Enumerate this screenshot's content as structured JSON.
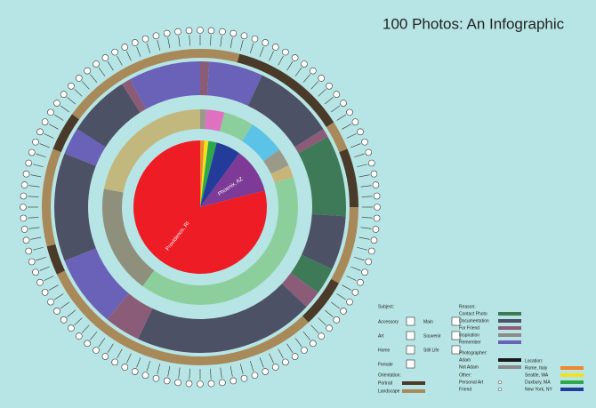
{
  "title": "100 Photos: An Infographic",
  "pie": {
    "labels": [
      "Rome, Italy",
      "Seattle, WA",
      "Duxbury, MA",
      "New York, NY",
      "Phoenix, AZ",
      "Providence, RI"
    ],
    "values": [
      1,
      1,
      2,
      6,
      11,
      79
    ],
    "colors": [
      "#f0872a",
      "#f2e21c",
      "#2fa84a",
      "#233c9a",
      "#7d3a96",
      "#ee1c25"
    ]
  },
  "rings": [
    {
      "values": [
        1,
        3,
        5,
        6,
        3,
        2,
        40,
        18,
        22
      ],
      "colors": [
        "#9a9a8a",
        "#e070c0",
        "#8dcf9c",
        "#5cc3e8",
        "#9a9a8a",
        "#c8b57a",
        "#8dcf9c",
        "#8f907c",
        "#c2b87e"
      ]
    },
    {
      "values": [
        1,
        6,
        9,
        1,
        9,
        6,
        3,
        2,
        20,
        4,
        8,
        12,
        3,
        7,
        1,
        8
      ],
      "colors": [
        "#8b5c78",
        "#6a62b8",
        "#4d5165",
        "#8b5c78",
        "#3e7a57",
        "#4d5165",
        "#3e7a57",
        "#8b5c78",
        "#4d5165",
        "#8b5c78",
        "#6a62b8",
        "#4d5165",
        "#6a62b8",
        "#4d5165",
        "#8b5c78",
        "#6a62b8"
      ]
    },
    {
      "values": [
        4,
        12,
        3,
        6,
        8,
        5,
        30,
        3,
        10,
        4,
        15
      ],
      "colors": [
        "#a88a5a",
        "#4a3a2a",
        "#a88a5a",
        "#4a3a2a",
        "#a88a5a",
        "#4a3a2a",
        "#a88a5a",
        "#4a3a2a",
        "#a88a5a",
        "#4a3a2a",
        "#a88a5a"
      ]
    }
  ],
  "legend": {
    "subject": {
      "title": "Subject:",
      "items": [
        "Accessory",
        "Art",
        "Home",
        "Female",
        "Main",
        "Souvenir",
        "Still Life"
      ]
    },
    "orientation": {
      "title": "Orientation:",
      "items": [
        {
          "label": "Portrait",
          "color": "#4a3a2a"
        },
        {
          "label": "Landscape",
          "color": "#a88a5a"
        }
      ]
    },
    "reason": {
      "title": "Reason:",
      "items": [
        {
          "label": "Contact Photo",
          "color": "#3e7a57"
        },
        {
          "label": "Documentation",
          "color": "#4d5165"
        },
        {
          "label": "For Friend",
          "color": "#8b5c78"
        },
        {
          "label": "Inspiration",
          "color": "#8e8a85"
        },
        {
          "label": "Remember",
          "color": "#6a62b8"
        }
      ]
    },
    "photographer": {
      "title": "Photographer:",
      "items": [
        {
          "label": "Adam",
          "color": "#1a1a1a"
        },
        {
          "label": "Not Adam",
          "color": "#8a8a8a"
        }
      ]
    },
    "other": {
      "title": "Other:",
      "items": [
        "Personal Art",
        "Friend"
      ]
    },
    "location": {
      "title": "Location:",
      "items": [
        {
          "label": "Rome, Italy",
          "color": "#f0872a"
        },
        {
          "label": "Seattle, WA",
          "color": "#f2e21c"
        },
        {
          "label": "Duxbury, MA",
          "color": "#2fa84a"
        },
        {
          "label": "New York, NY",
          "color": "#233c9a"
        }
      ]
    }
  }
}
